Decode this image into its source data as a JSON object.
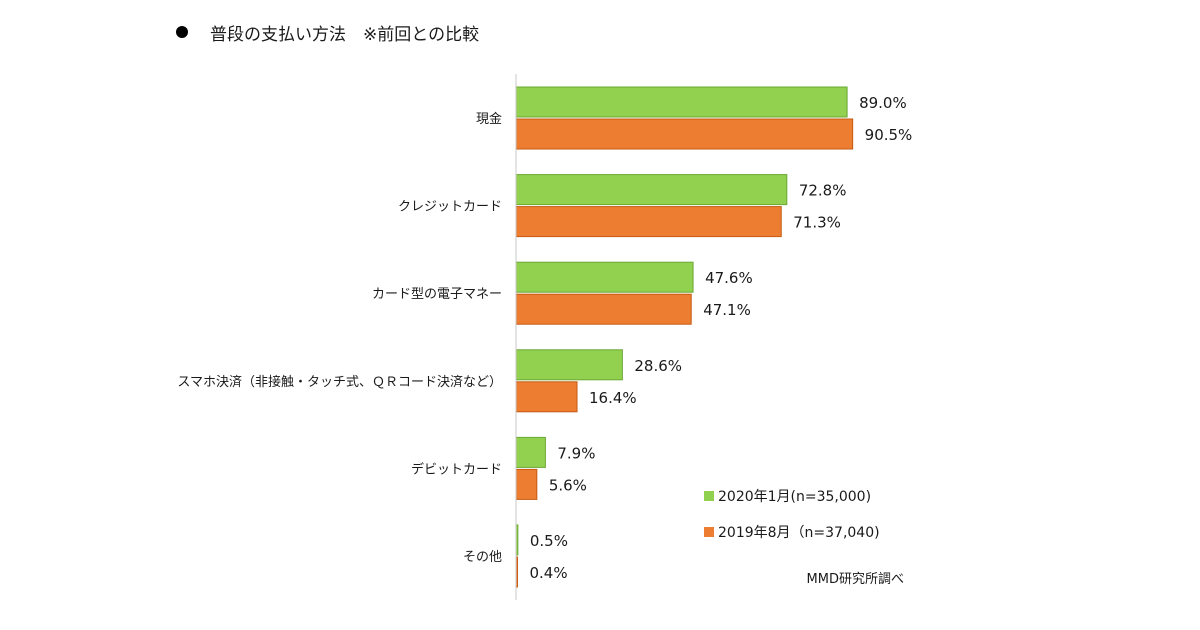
{
  "title": {
    "bullet": "●",
    "text": "普段の支払い方法　※前回との比較"
  },
  "chart_data": {
    "type": "bar",
    "orientation": "horizontal",
    "categories": [
      "現金",
      "クレジットカード",
      "カード型の電子マネー",
      "スマホ決済（非接触・タッチ式、ＱＲコード決済など）",
      "デビットカード",
      "その他"
    ],
    "series": [
      {
        "name": "2020年1月(n=35,000)",
        "color": "#92d050",
        "stroke": "#6aa832",
        "values": [
          89.0,
          72.8,
          47.6,
          28.6,
          7.9,
          0.5
        ],
        "labels": [
          "89.0%",
          "72.8%",
          "47.6%",
          "28.6%",
          "7.9%",
          "0.5%"
        ]
      },
      {
        "name": "2019年8月（n=37,040)",
        "color": "#ed7d31",
        "stroke": "#c55a11",
        "values": [
          90.5,
          71.3,
          47.1,
          16.4,
          5.6,
          0.4
        ],
        "labels": [
          "90.5%",
          "71.3%",
          "47.1%",
          "16.4%",
          "5.6%",
          "0.4%"
        ]
      }
    ],
    "xlim": [
      0,
      100
    ],
    "grid": false,
    "legend_position": "bottom-right"
  },
  "source": "MMD研究所調べ"
}
